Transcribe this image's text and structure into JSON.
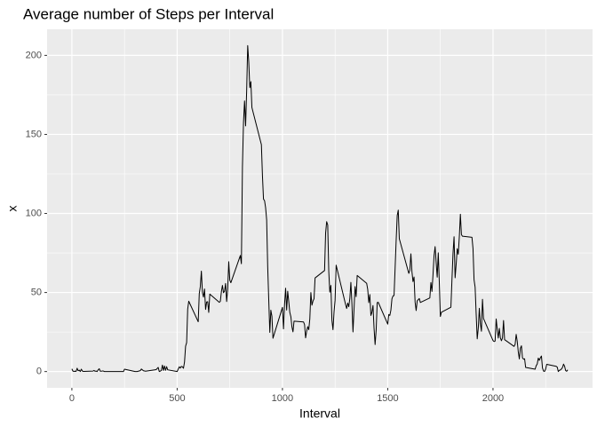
{
  "chart_data": {
    "type": "line",
    "title": "Average number of Steps per Interval",
    "x_label": "Interval",
    "y_label": "x",
    "x": [
      0,
      5,
      10,
      15,
      20,
      25,
      30,
      35,
      40,
      45,
      50,
      55,
      100,
      105,
      110,
      115,
      120,
      125,
      130,
      135,
      140,
      145,
      150,
      155,
      200,
      215,
      230,
      245,
      250,
      300,
      310,
      325,
      330,
      340,
      350,
      400,
      410,
      415,
      420,
      425,
      430,
      435,
      440,
      445,
      450,
      455,
      500,
      505,
      510,
      515,
      520,
      525,
      530,
      535,
      540,
      545,
      550,
      555,
      600,
      605,
      610,
      615,
      620,
      625,
      630,
      635,
      640,
      645,
      650,
      655,
      700,
      705,
      710,
      715,
      720,
      725,
      730,
      735,
      740,
      745,
      750,
      755,
      800,
      805,
      810,
      815,
      820,
      825,
      830,
      835,
      840,
      845,
      850,
      855,
      900,
      905,
      910,
      915,
      920,
      925,
      930,
      935,
      940,
      945,
      950,
      955,
      1000,
      1005,
      1010,
      1015,
      1020,
      1025,
      1030,
      1035,
      1040,
      1045,
      1050,
      1055,
      1100,
      1105,
      1110,
      1115,
      1120,
      1125,
      1130,
      1135,
      1140,
      1145,
      1150,
      1155,
      1200,
      1205,
      1210,
      1215,
      1220,
      1225,
      1230,
      1235,
      1240,
      1245,
      1250,
      1255,
      1300,
      1305,
      1310,
      1315,
      1320,
      1325,
      1330,
      1335,
      1340,
      1345,
      1350,
      1355,
      1400,
      1405,
      1410,
      1415,
      1420,
      1425,
      1430,
      1435,
      1440,
      1445,
      1450,
      1455,
      1500,
      1505,
      1510,
      1515,
      1520,
      1525,
      1530,
      1535,
      1540,
      1545,
      1550,
      1555,
      1600,
      1605,
      1610,
      1615,
      1620,
      1625,
      1630,
      1635,
      1640,
      1645,
      1650,
      1655,
      1700,
      1705,
      1710,
      1715,
      1720,
      1725,
      1730,
      1735,
      1740,
      1745,
      1750,
      1755,
      1800,
      1805,
      1810,
      1815,
      1820,
      1825,
      1830,
      1835,
      1840,
      1845,
      1850,
      1855,
      1900,
      1905,
      1910,
      1915,
      1920,
      1925,
      1930,
      1935,
      1940,
      1945,
      1950,
      1955,
      2000,
      2005,
      2010,
      2015,
      2020,
      2025,
      2030,
      2035,
      2040,
      2045,
      2050,
      2055,
      2100,
      2105,
      2110,
      2115,
      2120,
      2125,
      2130,
      2135,
      2140,
      2145,
      2150,
      2155,
      2200,
      2205,
      2210,
      2215,
      2220,
      2225,
      2230,
      2235,
      2240,
      2245,
      2250,
      2255,
      2300,
      2305,
      2310,
      2315,
      2320,
      2325,
      2330,
      2335,
      2340,
      2345,
      2350,
      2355
    ],
    "series": [
      {
        "color": "#000000",
        "values": [
          1.7,
          0.3,
          0.1,
          0.2,
          0.1,
          2.1,
          0.5,
          0.9,
          0,
          1.5,
          0.3,
          0.1,
          0.3,
          0.7,
          0.2,
          0.3,
          0,
          1.1,
          1.8,
          0.2,
          0.2,
          0.4,
          0.3,
          0,
          0,
          0,
          0,
          0,
          1.5,
          0,
          0,
          0.6,
          1.6,
          0.5,
          0.2,
          1.2,
          2.6,
          0,
          0.3,
          0.7,
          4.1,
          0.7,
          3.5,
          0.8,
          3.1,
          1.1,
          0,
          1.6,
          3.0,
          2.2,
          3.3,
          3.0,
          2.1,
          6.1,
          16.0,
          18.3,
          39.5,
          44.5,
          31.5,
          49.3,
          53.8,
          63.5,
          50.0,
          47.1,
          52.2,
          39.3,
          44.0,
          44.2,
          37.4,
          49.0,
          43.8,
          44.4,
          50.5,
          54.5,
          49.9,
          50.8,
          55.7,
          44.3,
          52.3,
          69.5,
          57.8,
          56.2,
          73.4,
          68.2,
          129.4,
          157.5,
          171.2,
          155.4,
          177.3,
          206.2,
          195.9,
          179.6,
          183.4,
          167.0,
          143.5,
          124.0,
          109.1,
          108.1,
          103.7,
          96.0,
          66.2,
          45.2,
          24.8,
          38.8,
          35.0,
          21.1,
          40.6,
          27.0,
          42.4,
          52.7,
          38.9,
          50.8,
          44.3,
          37.4,
          34.7,
          28.3,
          25.1,
          31.9,
          31.4,
          29.7,
          21.3,
          25.5,
          28.4,
          26.5,
          33.4,
          50.0,
          42.0,
          44.6,
          46.0,
          59.2,
          63.9,
          87.7,
          94.8,
          92.8,
          63.4,
          50.2,
          54.5,
          32.4,
          26.5,
          37.7,
          45.1,
          67.3,
          42.3,
          39.9,
          43.3,
          41.0,
          46.2,
          56.4,
          42.8,
          25.1,
          39.5,
          53.8,
          47.4,
          60.8,
          55.8,
          52.0,
          43.6,
          48.7,
          35.5,
          37.5,
          41.8,
          27.5,
          17.1,
          26.1,
          43.6,
          43.8,
          30.0,
          36.1,
          35.5,
          38.8,
          46.0,
          47.8,
          48.1,
          65.3,
          82.9,
          98.7,
          102.1,
          84.0,
          62.1,
          64.1,
          74.5,
          63.2,
          56.9,
          59.8,
          43.9,
          38.6,
          44.7,
          45.5,
          46.2,
          43.7,
          46.6,
          56.3,
          50.7,
          61.2,
          73.4,
          79.0,
          68.9,
          59.7,
          75.1,
          56.5,
          34.8,
          37.5,
          40.7,
          58.0,
          74.7,
          85.3,
          59.3,
          67.8,
          77.7,
          74.2,
          85.3,
          99.5,
          86.6,
          85.6,
          84.9,
          77.8,
          58.0,
          53.4,
          36.3,
          20.7,
          27.4,
          40.0,
          30.2,
          25.5,
          45.7,
          33.5,
          19.6,
          19.0,
          19.3,
          33.3,
          26.8,
          21.2,
          27.3,
          21.3,
          19.5,
          21.3,
          32.3,
          20.2,
          15.9,
          17.2,
          23.5,
          19.2,
          12.5,
          8.0,
          14.7,
          16.3,
          8.7,
          7.8,
          8.1,
          2.6,
          1.5,
          3.7,
          4.8,
          8.5,
          7.1,
          8.7,
          9.8,
          2.2,
          0.3,
          0.1,
          1.6,
          4.6,
          3.3,
          2.8,
          0,
          0.8,
          1.0,
          1.6,
          2.6,
          4.7,
          3.3,
          0.6,
          0.2,
          1.1
        ]
      }
    ],
    "xlim": [
      -117.75,
      2472.75
    ],
    "ylim": [
      -10.3,
      216.5
    ],
    "xticks": [
      0,
      500,
      1000,
      1500,
      2000
    ],
    "yticks": [
      0,
      50,
      100,
      150,
      200
    ],
    "x_minor_ticks": [
      250,
      750,
      1250,
      1750,
      2250
    ],
    "y_minor_ticks": [
      25,
      75,
      125,
      175
    ],
    "grid": true
  }
}
